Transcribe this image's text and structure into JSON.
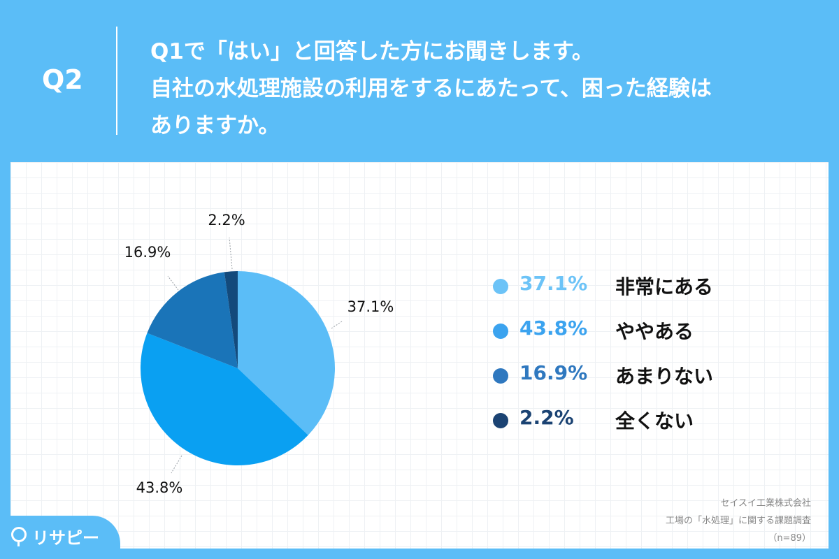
{
  "header": {
    "q_label": "Q2",
    "question_lines": [
      "Q1で「はい」と回答した方にお聞きします。",
      "自社の水処理施設の利用をするにあたって、困った経験は",
      "ありますか。"
    ]
  },
  "chart_data": {
    "type": "pie",
    "categories": [
      "非常にある",
      "ややある",
      "あまりない",
      "全くない"
    ],
    "values": [
      37.1,
      43.8,
      16.9,
      2.2
    ],
    "labels": [
      "37.1%",
      "43.8%",
      "16.9%",
      "2.2%"
    ],
    "colors": [
      "#5bbdf7",
      "#0aa0f2",
      "#1a74b8",
      "#134a7c"
    ],
    "legend_colors": [
      "#6cc3f7",
      "#3ba3ef",
      "#2f78bf",
      "#1b4373"
    ],
    "start": "12 o'clock",
    "direction": "clockwise",
    "legend_position": "right"
  },
  "legend": [
    {
      "pct": "37.1%",
      "label": "非常にある"
    },
    {
      "pct": "43.8%",
      "label": "ややある"
    },
    {
      "pct": "16.9%",
      "label": "あまりない"
    },
    {
      "pct": "2.2%",
      "label": "全くない"
    }
  ],
  "source": {
    "company": "セイスイ工業株式会社",
    "survey": "工場の「水処理」に関する課題調査",
    "n": "（n=89）"
  },
  "logo": {
    "text": "リサピー"
  }
}
